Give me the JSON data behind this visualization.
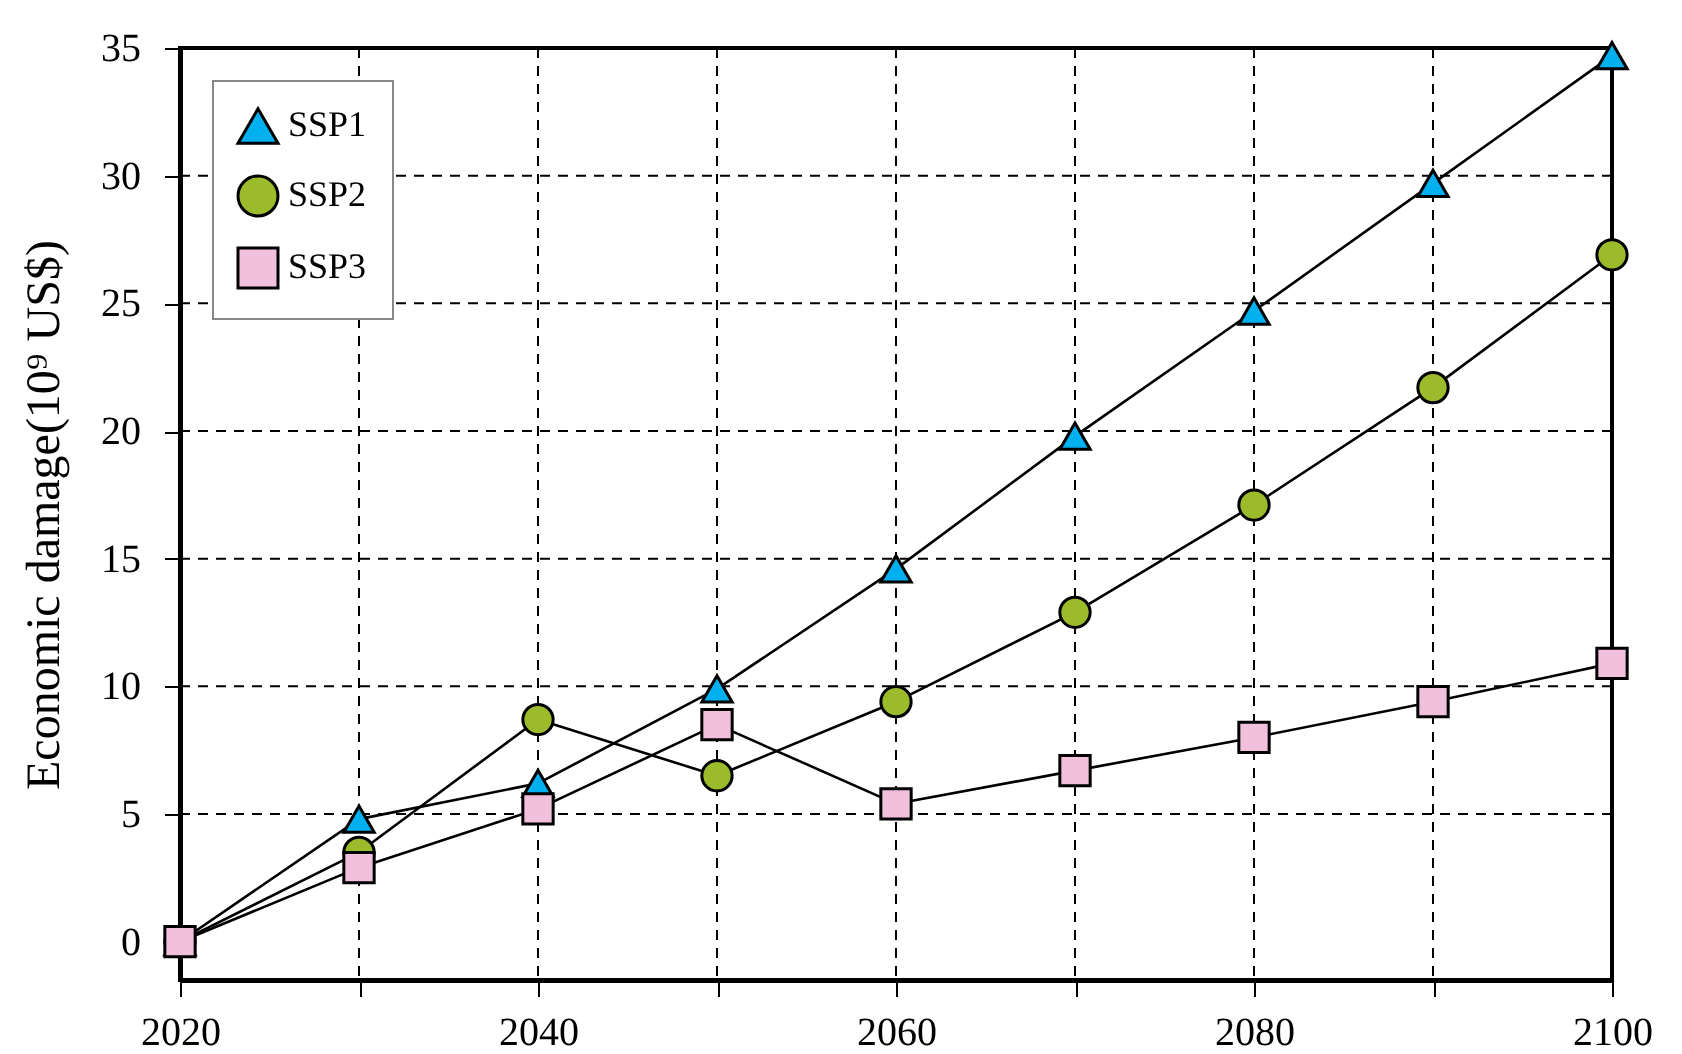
{
  "chart_data": {
    "type": "line",
    "ylabel": "Economic damage(10⁹ US$)",
    "x": [
      2020,
      2030,
      2040,
      2050,
      2060,
      2070,
      2080,
      2090,
      2100
    ],
    "series": [
      {
        "name": "SSP1",
        "color": "#00b0f0",
        "marker": "triangle",
        "values": [
          0,
          4.8,
          6.2,
          9.9,
          14.6,
          19.8,
          24.7,
          29.7,
          34.7
        ]
      },
      {
        "name": "SSP2",
        "color": "#9bbb2a",
        "marker": "circle",
        "values": [
          0,
          3.5,
          8.7,
          6.5,
          9.4,
          12.9,
          17.1,
          21.7,
          26.9
        ]
      },
      {
        "name": "SSP3",
        "color": "#f0c0dc",
        "marker": "square",
        "values": [
          0,
          2.9,
          5.2,
          8.5,
          5.4,
          6.7,
          8.0,
          9.4,
          10.9
        ]
      }
    ],
    "xlim": [
      2020,
      2100
    ],
    "ylim": [
      -1.5,
      35
    ],
    "xticks": [
      2020,
      {
        "value": 2030,
        "label": null
      },
      2040,
      {
        "value": 2050,
        "label": null
      },
      2060,
      {
        "value": 2070,
        "label": null
      },
      2080,
      {
        "value": 2090,
        "label": null
      },
      2100
    ],
    "yticks": [
      0,
      5,
      10,
      15,
      20,
      25,
      30,
      35
    ],
    "grid": true,
    "legend": "top left",
    "line_style": "solid"
  }
}
